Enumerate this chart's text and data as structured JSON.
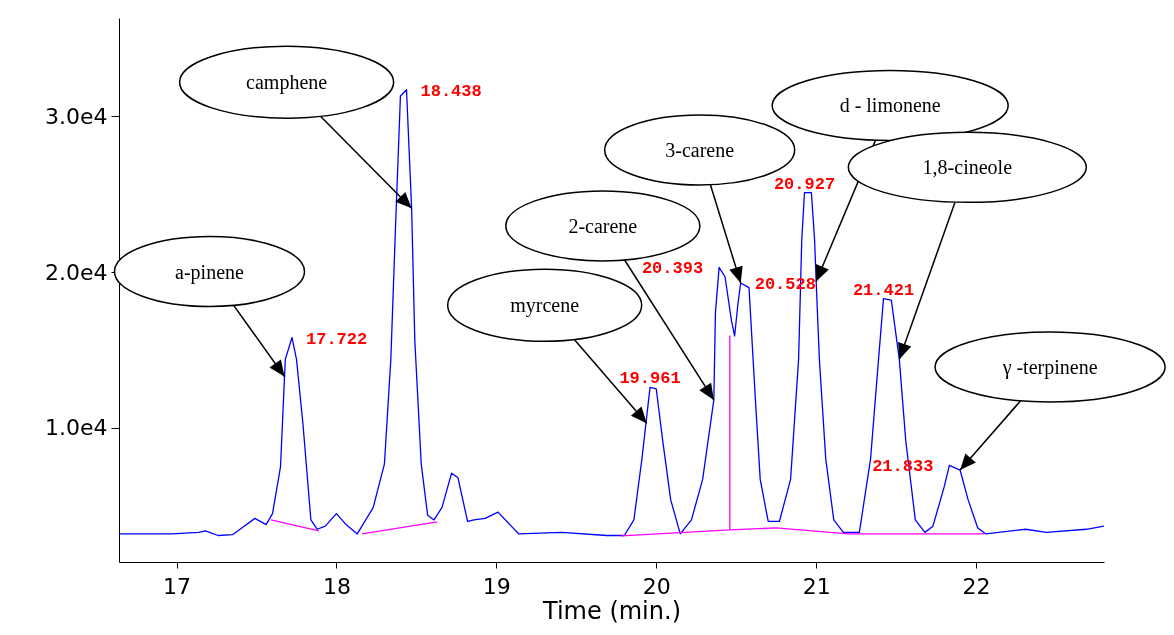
{
  "chart_data": {
    "type": "line",
    "xlabel": "Time (min.)",
    "xlim": [
      16.64,
      22.8
    ],
    "xticks": [
      17,
      18,
      19,
      20,
      21,
      22
    ],
    "ylim": [
      1400,
      36300
    ],
    "yticks": [
      {
        "value": 10000,
        "label": "1.0e4"
      },
      {
        "value": 20000,
        "label": "2.0e4"
      },
      {
        "value": 30000,
        "label": "3.0e4"
      }
    ],
    "series": [
      {
        "color": "#0000ff",
        "x": [
          16.64,
          16.97,
          17.14,
          17.18,
          17.26,
          17.35,
          17.41,
          17.49,
          17.56,
          17.6,
          17.65,
          17.68,
          17.722,
          17.75,
          17.79,
          17.84,
          17.88,
          17.93,
          18.0,
          18.06,
          18.13,
          18.23,
          18.3,
          18.34,
          18.37,
          18.4,
          18.438,
          18.47,
          18.49,
          18.53,
          18.57,
          18.61,
          18.66,
          18.72,
          18.76,
          18.82,
          18.86,
          18.93,
          19.01,
          19.14,
          19.41,
          19.69,
          19.8,
          19.86,
          19.91,
          19.961,
          20.0,
          20.04,
          20.09,
          20.15,
          20.22,
          20.29,
          20.36,
          20.37,
          20.393,
          20.43,
          20.47,
          20.49,
          20.51,
          20.528,
          20.58,
          20.62,
          20.65,
          20.7,
          20.77,
          20.84,
          20.89,
          20.91,
          20.927,
          20.97,
          20.99,
          21.0,
          21.02,
          21.06,
          21.11,
          21.17,
          21.27,
          21.34,
          21.39,
          21.421,
          21.47,
          21.52,
          21.56,
          21.62,
          21.68,
          21.73,
          21.8,
          21.833,
          21.9,
          21.95,
          22.01,
          22.06,
          22.31,
          22.44,
          22.69,
          22.8
        ],
        "values": [
          3200,
          3200,
          3300,
          3400,
          3100,
          3150,
          3600,
          4200,
          3800,
          4500,
          7500,
          14400,
          15800,
          14400,
          10300,
          4100,
          3500,
          3700,
          4500,
          3800,
          3200,
          4900,
          7700,
          14400,
          23100,
          31300,
          31700,
          24100,
          15600,
          7700,
          4400,
          4100,
          4900,
          7100,
          6800,
          4000,
          4100,
          4200,
          4600,
          3200,
          3300,
          3100,
          3100,
          4100,
          8000,
          12600,
          12500,
          9200,
          5400,
          3200,
          4100,
          6700,
          11800,
          17400,
          20300,
          19700,
          16900,
          15900,
          17900,
          19300,
          19000,
          11800,
          6700,
          4000,
          4000,
          6700,
          14400,
          22100,
          25100,
          25100,
          22100,
          19400,
          14400,
          8000,
          4100,
          3300,
          3300,
          8000,
          14400,
          18300,
          18200,
          14400,
          9200,
          4100,
          3300,
          3700,
          6200,
          7600,
          7300,
          5400,
          3600,
          3200,
          3500,
          3300,
          3500,
          3700
        ]
      },
      {
        "color": "#ff00ff",
        "x": [
          17.59,
          17.89,
          17.9,
          18.16,
          18.63,
          18.64,
          19.78,
          20.46,
          20.46,
          20.46,
          20.75,
          21.2,
          22.05
        ],
        "values": [
          4100,
          3400,
          null,
          3200,
          3970,
          null,
          3080,
          3460,
          15900,
          3460,
          3590,
          3200,
          3200
        ]
      }
    ],
    "annotations": [
      {
        "text": "a-pinene",
        "x": 17.675,
        "y": 13300
      },
      {
        "text": "camphene",
        "x": 18.47,
        "y": 24100
      },
      {
        "text": "myrcene",
        "x": 19.94,
        "y": 10300
      },
      {
        "text": "2-carene",
        "x": 20.36,
        "y": 11800
      },
      {
        "text": "3-carene",
        "x": 20.528,
        "y": 19300
      },
      {
        "text": "d - limonene",
        "x": 21.0,
        "y": 19400
      },
      {
        "text": "1,8-cineole",
        "x": 21.52,
        "y": 14400
      },
      {
        "text": "γ -terpinene",
        "x": 21.9,
        "y": 7300
      },
      {
        "text": "17.722",
        "x": 17.722,
        "y": 15800
      },
      {
        "text": "18.438",
        "x": 18.438,
        "y": 31700
      },
      {
        "text": "19.961",
        "x": 19.961,
        "y": 12600
      },
      {
        "text": "20.393",
        "x": 20.393,
        "y": 20300
      },
      {
        "text": "20.528",
        "x": 20.528,
        "y": 19300
      },
      {
        "text": "20.927",
        "x": 20.927,
        "y": 25100
      },
      {
        "text": "21.421",
        "x": 21.421,
        "y": 18300
      },
      {
        "text": "21.833",
        "x": 21.833,
        "y": 7600
      }
    ]
  }
}
